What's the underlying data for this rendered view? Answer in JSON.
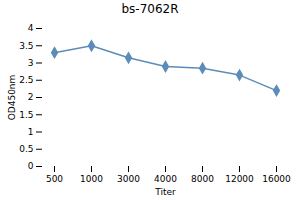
{
  "chart_data": {
    "type": "line",
    "title": "bs-7062R",
    "xlabel": "Titer",
    "ylabel": "OD450nm",
    "categories": [
      "500",
      "1000",
      "3000",
      "4000",
      "8000",
      "12000",
      "16000"
    ],
    "values": [
      3.3,
      3.5,
      3.15,
      2.9,
      2.85,
      2.65,
      2.2
    ],
    "color": "#5B8DB8",
    "marker": "diamond",
    "ylim": [
      0,
      4.0
    ],
    "yticks": [
      0,
      0.5,
      1,
      1.5,
      2,
      2.5,
      3,
      3.5,
      4
    ]
  }
}
